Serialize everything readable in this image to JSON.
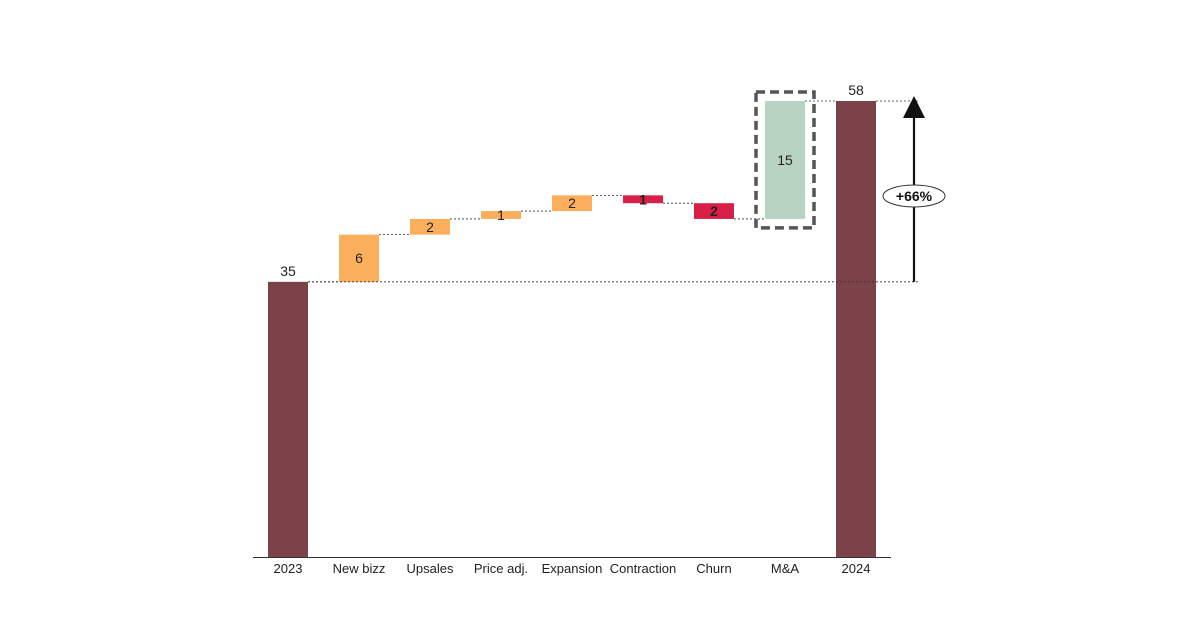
{
  "chart_data": {
    "type": "bar",
    "subtype": "waterfall",
    "categories": [
      "2023",
      "New bizz",
      "Upsales",
      "Price adj.",
      "Expansion",
      "Contraction",
      "Churn",
      "M&A",
      "2024"
    ],
    "steps": [
      {
        "category": "2023",
        "kind": "total",
        "value": 35,
        "label": "35"
      },
      {
        "category": "New bizz",
        "kind": "increase",
        "value": 6,
        "label": "6"
      },
      {
        "category": "Upsales",
        "kind": "increase",
        "value": 2,
        "label": "2"
      },
      {
        "category": "Price adj.",
        "kind": "increase",
        "value": 1,
        "label": "1"
      },
      {
        "category": "Expansion",
        "kind": "increase",
        "value": 2,
        "label": "2"
      },
      {
        "category": "Contraction",
        "kind": "decrease",
        "value": -1,
        "label": "1"
      },
      {
        "category": "Churn",
        "kind": "decrease",
        "value": -2,
        "label": "2"
      },
      {
        "category": "M&A",
        "kind": "increase",
        "value": 15,
        "label": "15",
        "highlighted": true
      },
      {
        "category": "2024",
        "kind": "total",
        "value": 58,
        "label": "58"
      }
    ],
    "ylim": [
      0,
      58
    ],
    "annotation": {
      "text": "+66%",
      "from_value": 35,
      "to_value": 58
    },
    "colors": {
      "total": "#7b424a",
      "increase": "#fbaf5d",
      "decrease": "#d91e48",
      "ma": "#b8d3bf",
      "highlight_border": "#555555",
      "text": "#222222"
    }
  }
}
